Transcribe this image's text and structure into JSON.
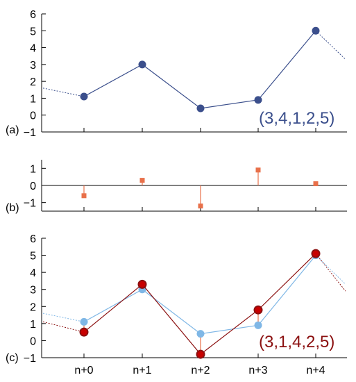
{
  "colors": {
    "series_a": "#3b4f8c",
    "series_a_light": "#7fb7e6",
    "diff": "#e8704a",
    "series_c": "#8b1010",
    "series_c_marker": "#c80000",
    "axis": "#000000"
  },
  "chart_data": [
    {
      "type": "line",
      "panel_label": "(a)",
      "categories": [
        "n+0",
        "n+1",
        "n+2",
        "n+3",
        "n+4"
      ],
      "values": [
        1.1,
        3.0,
        0.4,
        0.9,
        5.0
      ],
      "extrapolation": {
        "left": 1.6,
        "right": 3.3
      },
      "annotation": "(3,4,1,2,5)",
      "ylim": [
        -1,
        6
      ],
      "yticks": [
        "−1",
        "0",
        "1",
        "2",
        "3",
        "4",
        "5",
        "6"
      ],
      "ytick_values": [
        -1,
        0,
        1,
        2,
        3,
        4,
        5,
        6
      ]
    },
    {
      "type": "stem",
      "panel_label": "(b)",
      "categories": [
        "n+0",
        "n+1",
        "n+2",
        "n+3",
        "n+4"
      ],
      "values": [
        -0.6,
        0.3,
        -1.2,
        0.9,
        0.1
      ],
      "ylim": [
        -1.5,
        1.5
      ],
      "yticks": [
        "−1",
        "0",
        "1"
      ],
      "ytick_values": [
        -1,
        0,
        1
      ]
    },
    {
      "type": "line",
      "panel_label": "(c)",
      "categories": [
        "n+0",
        "n+1",
        "n+2",
        "n+3",
        "n+4"
      ],
      "series": [
        {
          "values": [
            1.1,
            3.0,
            0.4,
            0.9,
            5.0
          ]
        },
        {
          "values": [
            0.5,
            3.3,
            -0.8,
            1.8,
            5.1
          ]
        }
      ],
      "extrapolation_light": {
        "left": 1.6,
        "right": 3.3
      },
      "extrapolation_dark": {
        "left": 1.1,
        "right": 2.9
      },
      "annotation": "(3,1,4,2,5)",
      "ylim": [
        -1,
        6
      ],
      "yticks": [
        "−1",
        "0",
        "1",
        "2",
        "3",
        "4",
        "5",
        "6"
      ],
      "ytick_values": [
        -1,
        0,
        1,
        2,
        3,
        4,
        5,
        6
      ],
      "xticks": [
        "n+0",
        "n+1",
        "n+2",
        "n+3",
        "n+4"
      ]
    }
  ]
}
